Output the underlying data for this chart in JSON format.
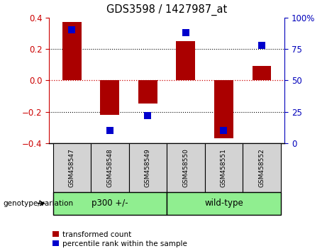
{
  "title": "GDS3598 / 1427987_at",
  "samples": [
    "GSM458547",
    "GSM458548",
    "GSM458549",
    "GSM458550",
    "GSM458551",
    "GSM458552"
  ],
  "red_values": [
    0.37,
    -0.22,
    -0.15,
    0.25,
    -0.37,
    0.09
  ],
  "blue_values": [
    90,
    10,
    22,
    88,
    10,
    78
  ],
  "ylim_left": [
    -0.4,
    0.4
  ],
  "ylim_right": [
    0,
    100
  ],
  "group_label": "genotype/variation",
  "groups": [
    {
      "label": "p300 +/-",
      "start": 0,
      "end": 3
    },
    {
      "label": "wild-type",
      "start": 3,
      "end": 6
    }
  ],
  "legend_red_label": "transformed count",
  "legend_blue_label": "percentile rank within the sample",
  "red_color": "#AA0000",
  "blue_color": "#0000CC",
  "bar_width": 0.5,
  "dot_size": 45,
  "zero_line_color": "#CC0000",
  "background_color": "#FFFFFF",
  "tick_color_left": "#CC0000",
  "tick_color_right": "#0000BB",
  "group_color": "#90EE90",
  "label_box_color": "#D3D3D3"
}
